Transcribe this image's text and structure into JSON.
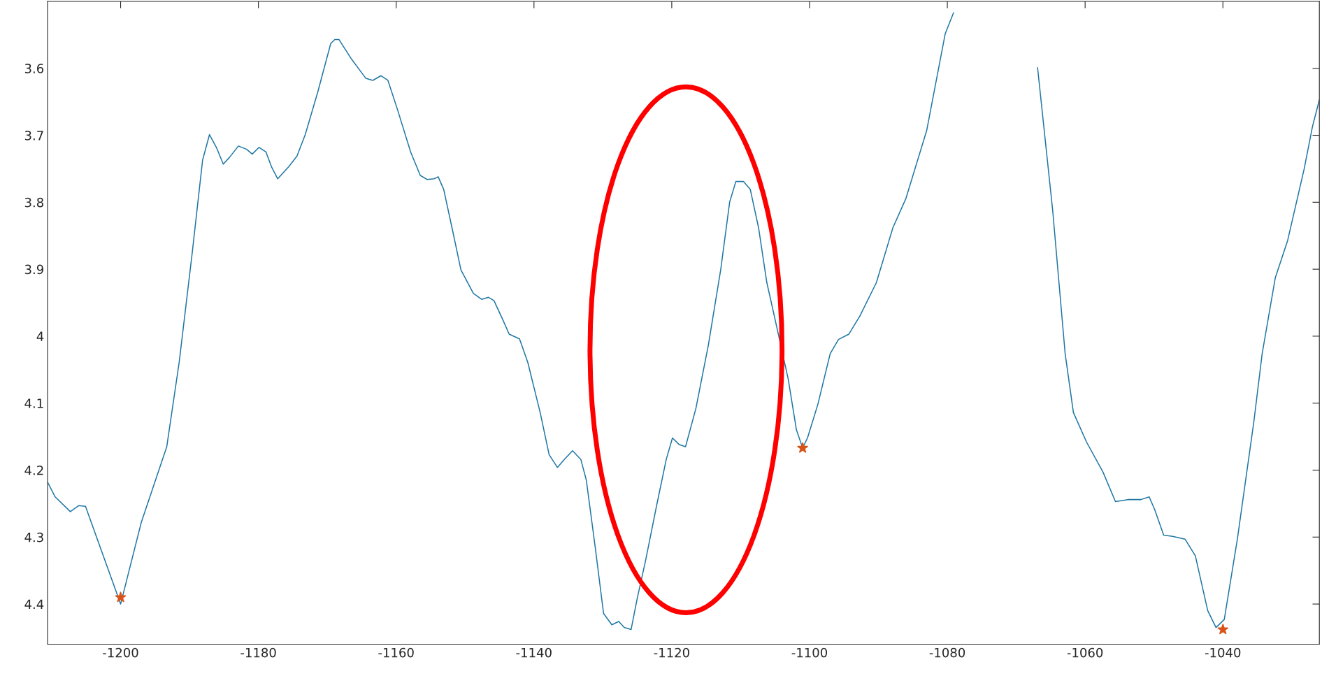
{
  "chart_data": {
    "type": "line",
    "xlim": [
      -1210.6,
      -1026
    ],
    "ylim": [
      4.46,
      3.5
    ],
    "xticks": [
      -1200,
      -1180,
      -1160,
      -1140,
      -1120,
      -1100,
      -1080,
      -1060,
      -1040
    ],
    "yticks": [
      3.6,
      3.7,
      3.8,
      3.9,
      4,
      4.1,
      4.2,
      4.3,
      4.4
    ],
    "grid": false,
    "legend": false,
    "series": [
      {
        "color": "#1f77a4",
        "marker": "none",
        "x": [
          -1210.6,
          -1209.5,
          -1207.3,
          -1206.1,
          -1205.1,
          -1200,
          -1197,
          -1193.3,
          -1191.5,
          -1189.6,
          -1188.1,
          -1187.1,
          -1186.1,
          -1185.1,
          -1184.2,
          -1182.9,
          -1181.7,
          -1180.9,
          -1179.9,
          -1178.9,
          -1178.1,
          -1177.2,
          -1175.6,
          -1174.4,
          -1173.2,
          -1171.4,
          -1169.5,
          -1168.9,
          -1168.3,
          -1166.5,
          -1164.4,
          -1163.4,
          -1162.2,
          -1161.2,
          -1159.8,
          -1157.9,
          -1156.5,
          -1155.5,
          -1154.5,
          -1153.9,
          -1153.1,
          -1151.9,
          -1150.6,
          -1148.8,
          -1147.6,
          -1146.6,
          -1145.8,
          -1144.5,
          -1143.6,
          -1142.1,
          -1140.9,
          -1139.1,
          -1137.8,
          -1136.6,
          -1135.6,
          -1134.4,
          -1133.2,
          -1132.4,
          -1131.1,
          -1129.9,
          -1128.7,
          -1127.7,
          -1126.9,
          -1125.9,
          -1125,
          -1123.8,
          -1122.2,
          -1120.8,
          -1119.9,
          -1118.9,
          -1118,
          -1116.5,
          -1114.7,
          -1112.9,
          -1111.6,
          -1110.7,
          -1109.6,
          -1108.6,
          -1107.4,
          -1106.2,
          -1104.7,
          -1103.1,
          -1101.9,
          -1101,
          -1100.3,
          -1098.8,
          -1097,
          -1095.8,
          -1094.3,
          -1092.7,
          -1090.3,
          -1087.9,
          -1086,
          -1083,
          -1080.3,
          -1079.1,
          -1078.1,
          -1073,
          -1068.4,
          -1066.9,
          -1064.7,
          -1062.9,
          -1061.7,
          -1059.8,
          -1057.4,
          -1055.6,
          -1053.8,
          -1051.9,
          -1050.7,
          -1049.9,
          -1048.6,
          -1047.3,
          -1045.5,
          -1044,
          -1042.2,
          -1041,
          -1039.8,
          -1037.9,
          -1035.5,
          -1034.3,
          -1032.4,
          -1030.6,
          -1028.2,
          -1027,
          -1026
        ],
        "values": [
          4.218,
          4.24,
          4.262,
          4.253,
          4.254,
          4.4,
          4.278,
          4.165,
          4.039,
          3.875,
          3.737,
          3.699,
          3.718,
          3.743,
          3.733,
          3.716,
          3.721,
          3.728,
          3.718,
          3.725,
          3.747,
          3.765,
          3.747,
          3.731,
          3.699,
          3.636,
          3.563,
          3.557,
          3.557,
          3.586,
          3.615,
          3.618,
          3.611,
          3.618,
          3.662,
          3.725,
          3.76,
          3.766,
          3.765,
          3.762,
          3.781,
          3.838,
          3.901,
          3.936,
          3.945,
          3.942,
          3.947,
          3.976,
          3.997,
          4.004,
          4.039,
          4.114,
          4.177,
          4.196,
          4.184,
          4.171,
          4.184,
          4.215,
          4.316,
          4.414,
          4.431,
          4.426,
          4.435,
          4.438,
          4.391,
          4.335,
          4.253,
          4.184,
          4.152,
          4.162,
          4.165,
          4.108,
          4.014,
          3.901,
          3.8,
          3.769,
          3.769,
          3.781,
          3.838,
          3.92,
          3.989,
          4.064,
          4.14,
          4.167,
          4.152,
          4.102,
          4.026,
          4.005,
          3.997,
          3.97,
          3.92,
          3.838,
          3.794,
          3.693,
          3.548,
          3.517,
          null,
          null,
          null,
          3.599,
          3.813,
          4.026,
          4.114,
          4.158,
          4.203,
          4.247,
          4.244,
          4.244,
          4.24,
          4.259,
          4.297,
          4.299,
          4.303,
          4.328,
          4.41,
          4.435,
          4.423,
          4.303,
          4.127,
          4.026,
          3.913,
          3.857,
          3.75,
          3.687,
          3.647
        ]
      },
      {
        "type": "scatter",
        "color": "#d95319",
        "marker": "star",
        "x": [
          -1200,
          -1101,
          -1040
        ],
        "values": [
          4.39,
          4.167,
          4.438
        ]
      }
    ]
  }
}
